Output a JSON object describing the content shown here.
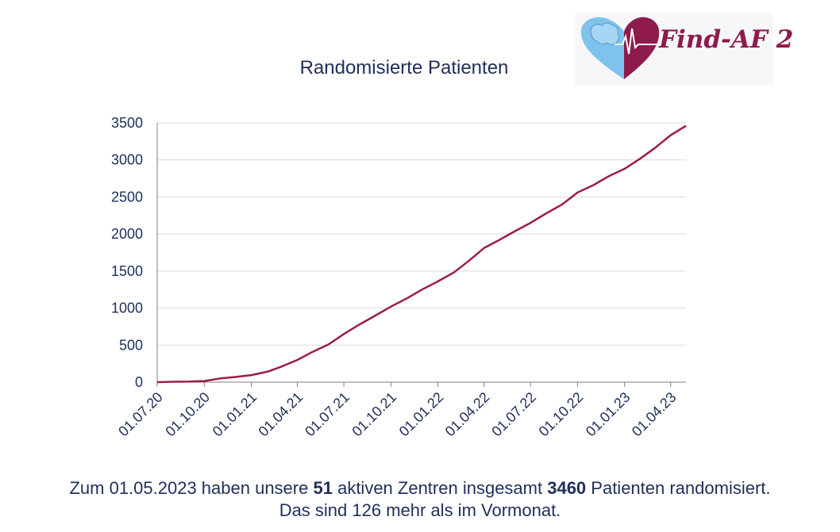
{
  "logo": {
    "text": "Find-AF 2",
    "accent": "#8e1b4c",
    "secondary": "#7ec3ee"
  },
  "chart_data": {
    "type": "line",
    "title": "Randomisierte Patienten",
    "xlabel": "",
    "ylabel": "",
    "ylim": [
      0,
      3500
    ],
    "yticks": [
      0,
      500,
      1000,
      1500,
      2000,
      2500,
      3000,
      3500
    ],
    "xlim": [
      "2020-07-01",
      "2023-05-01"
    ],
    "xticks": [
      {
        "date": "2020-07-01",
        "label": "01.07.20"
      },
      {
        "date": "2020-10-01",
        "label": "01.10.20"
      },
      {
        "date": "2021-01-01",
        "label": "01.01.21"
      },
      {
        "date": "2021-04-01",
        "label": "01.04.21"
      },
      {
        "date": "2021-07-01",
        "label": "01.07.21"
      },
      {
        "date": "2021-10-01",
        "label": "01.10.21"
      },
      {
        "date": "2022-01-01",
        "label": "01.01.22"
      },
      {
        "date": "2022-04-01",
        "label": "01.04.22"
      },
      {
        "date": "2022-07-01",
        "label": "01.07.22"
      },
      {
        "date": "2022-10-01",
        "label": "01.10.22"
      },
      {
        "date": "2023-01-01",
        "label": "01.01.23"
      },
      {
        "date": "2023-04-01",
        "label": "01.04.23"
      }
    ],
    "grid": true,
    "line_color": "#9b1c4a",
    "series": [
      {
        "x": [
          "2020-07-01",
          "2020-08-01",
          "2020-09-01",
          "2020-10-01",
          "2020-11-01",
          "2020-12-01",
          "2021-01-01",
          "2021-02-01",
          "2021-03-01",
          "2021-04-01",
          "2021-05-01",
          "2021-06-01",
          "2021-07-01",
          "2021-08-01",
          "2021-09-01",
          "2021-10-01",
          "2021-11-01",
          "2021-12-01",
          "2022-01-01",
          "2022-02-01",
          "2022-03-01",
          "2022-04-01",
          "2022-05-01",
          "2022-06-01",
          "2022-07-01",
          "2022-08-01",
          "2022-09-01",
          "2022-10-01",
          "2022-11-01",
          "2022-12-01",
          "2023-01-01",
          "2023-02-01",
          "2023-03-01",
          "2023-04-01",
          "2023-05-01"
        ],
        "y": [
          0,
          5,
          8,
          15,
          50,
          70,
          95,
          140,
          210,
          300,
          410,
          510,
          650,
          780,
          900,
          1020,
          1130,
          1250,
          1360,
          1480,
          1630,
          1810,
          1920,
          2040,
          2150,
          2280,
          2400,
          2560,
          2660,
          2780,
          2880,
          3020,
          3160,
          3334,
          3460
        ]
      }
    ]
  },
  "footer": {
    "line1_a": "Zum 01.05.2023 haben unsere ",
    "centers": "51",
    "line1_b": " aktiven Zentren insgesamt ",
    "patients": "3460",
    "line1_c": " Patienten randomisiert.",
    "line2": "Das sind 126 mehr als im Vormonat."
  }
}
